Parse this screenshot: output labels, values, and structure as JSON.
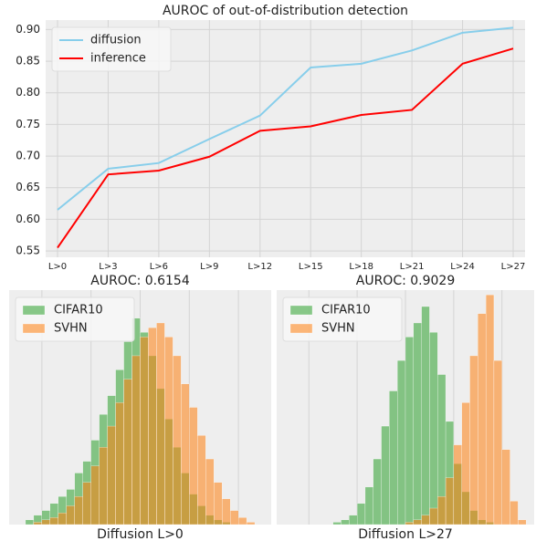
{
  "chart_data": [
    {
      "type": "line",
      "title": "AUROC of out-of-distribution detection",
      "categories": [
        "L>0",
        "L>3",
        "L>6",
        "L>9",
        "L>12",
        "L>15",
        "L>18",
        "L>21",
        "L>24",
        "L>27"
      ],
      "series": [
        {
          "name": "diffusion",
          "color": "#87ceeb",
          "values": [
            0.615,
            0.68,
            0.689,
            0.727,
            0.764,
            0.84,
            0.846,
            0.867,
            0.895,
            0.903
          ]
        },
        {
          "name": "inference",
          "color": "#ff0000",
          "values": [
            0.555,
            0.671,
            0.677,
            0.699,
            0.74,
            0.747,
            0.765,
            0.773,
            0.846,
            0.87
          ]
        }
      ],
      "ylim": [
        0.54,
        0.915
      ],
      "yticks": [
        0.55,
        {
          "value": 0.6,
          "label": "0.60"
        },
        0.65,
        {
          "value": 0.7,
          "label": "0.70"
        },
        0.75,
        {
          "value": 0.8,
          "label": "0.80"
        },
        0.85,
        {
          "value": 0.9,
          "label": "0.90"
        }
      ],
      "grid": true,
      "legend": "upper left"
    },
    {
      "type": "histogram",
      "title": "AUROC: 0.6154",
      "xlabel": "Diffusion L>0",
      "bins": [
        0,
        1,
        2,
        3,
        4,
        5,
        6,
        7,
        8,
        9,
        10,
        11,
        12,
        13,
        14,
        15,
        16,
        17,
        18,
        19,
        20,
        21,
        22,
        23,
        24,
        25,
        26,
        27,
        28,
        29,
        30
      ],
      "series": [
        {
          "name": "CIFAR10",
          "color": "#2ca02c",
          "values": [
            0,
            2,
            4,
            6,
            9,
            12,
            15,
            22,
            27,
            36,
            47,
            55,
            66,
            78,
            88,
            82,
            72,
            58,
            45,
            33,
            22,
            13,
            8,
            4,
            2,
            1,
            0,
            0,
            0,
            0
          ]
        },
        {
          "name": "SVHN",
          "color": "#ff7f0e",
          "values": [
            0,
            0,
            1,
            2,
            3,
            5,
            8,
            12,
            18,
            25,
            33,
            42,
            52,
            62,
            72,
            80,
            84,
            86,
            80,
            72,
            60,
            50,
            38,
            28,
            18,
            11,
            6,
            3,
            1,
            0
          ]
        }
      ],
      "xlim": [
        -1,
        31
      ],
      "ylim": [
        0,
        100
      ],
      "grid": true,
      "legend": "upper left"
    },
    {
      "type": "histogram",
      "title": "AUROC: 0.9029",
      "xlabel": "Diffusion L>27",
      "bins": [
        0,
        1,
        2,
        3,
        4,
        5,
        6,
        7,
        8,
        9,
        10,
        11,
        12,
        13,
        14,
        15,
        16,
        17,
        18,
        19,
        20,
        21,
        22,
        23,
        24,
        25,
        26,
        27,
        28,
        29,
        30
      ],
      "series": [
        {
          "name": "CIFAR10",
          "color": "#2ca02c",
          "values": [
            0,
            0,
            0,
            0,
            0,
            0,
            1,
            2,
            4,
            9,
            16,
            28,
            42,
            57,
            70,
            80,
            86,
            93,
            82,
            64,
            44,
            26,
            14,
            6,
            2,
            1,
            0,
            0,
            0,
            0
          ]
        },
        {
          "name": "SVHN",
          "color": "#ff7f0e",
          "values": [
            0,
            0,
            0,
            0,
            0,
            0,
            0,
            0,
            0,
            0,
            0,
            0,
            0,
            0,
            0,
            1,
            2,
            4,
            7,
            12,
            20,
            34,
            52,
            72,
            90,
            98,
            70,
            32,
            10,
            2
          ]
        }
      ],
      "xlim": [
        -1,
        31
      ],
      "ylim": [
        0,
        100
      ],
      "grid": true,
      "legend": "upper left"
    }
  ]
}
